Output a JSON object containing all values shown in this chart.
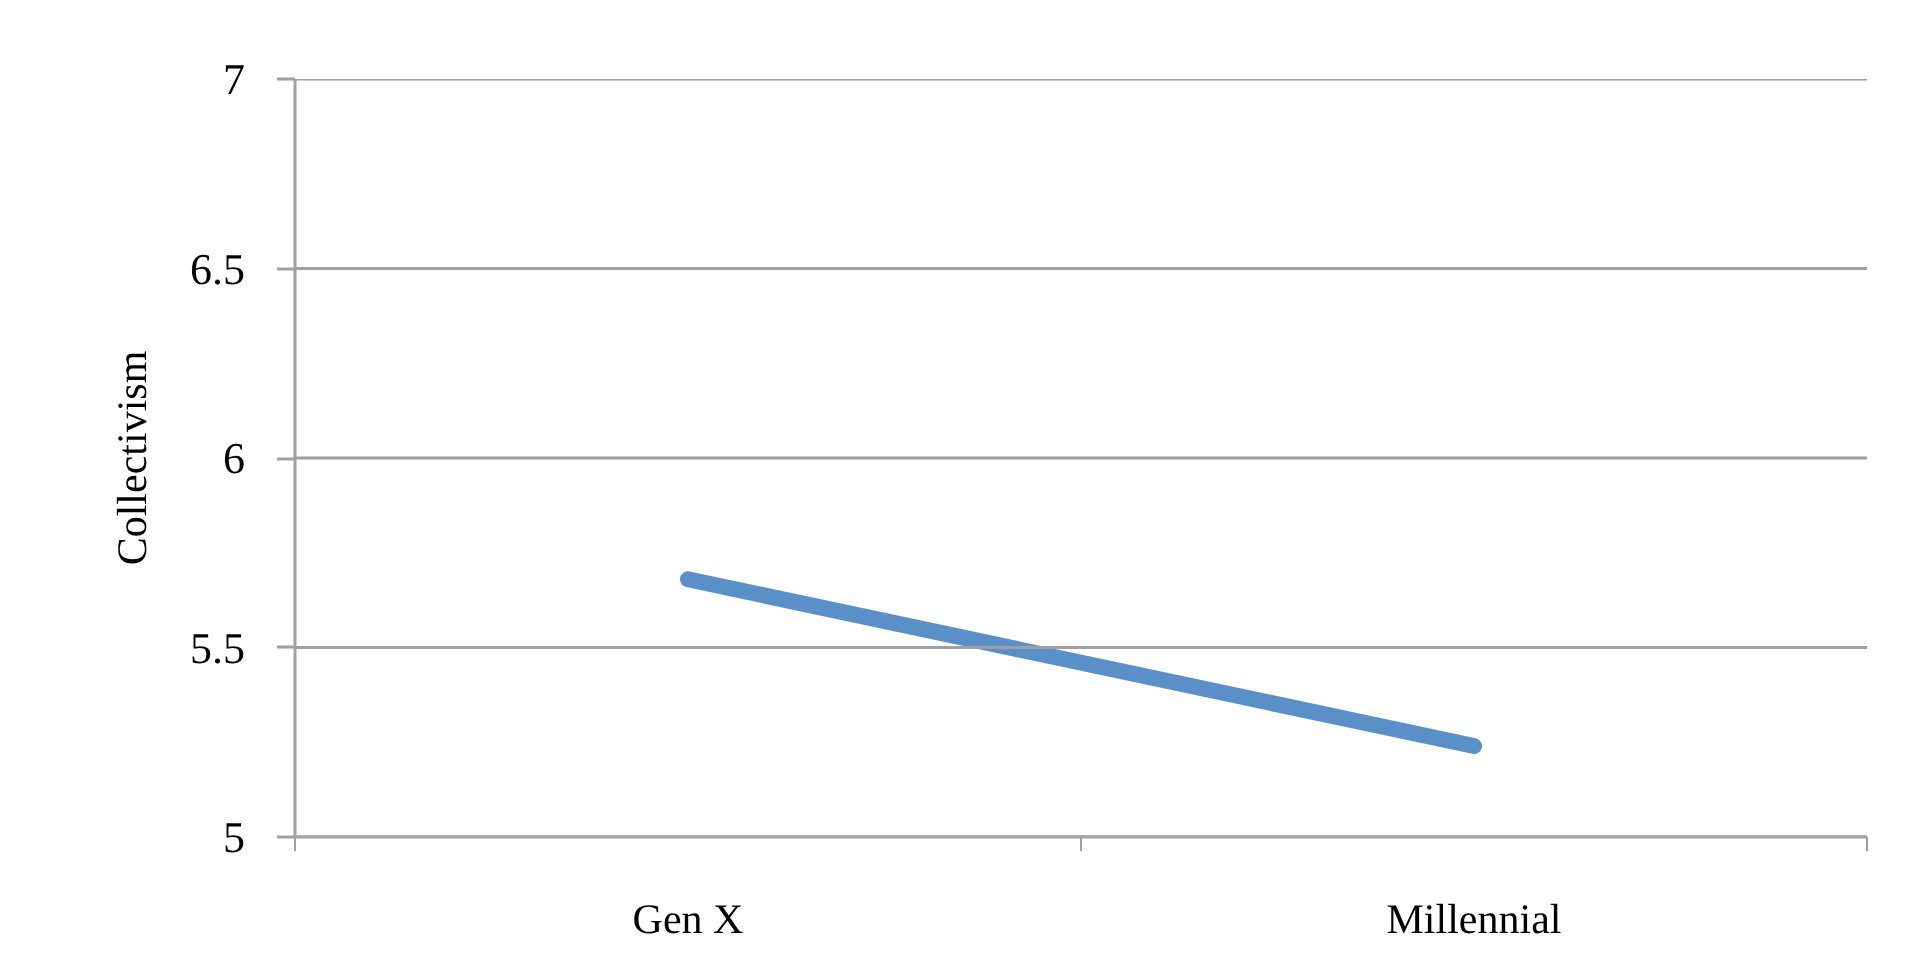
{
  "chart_data": {
    "type": "line",
    "categories": [
      "Gen X",
      "Millennial"
    ],
    "series": [
      {
        "color": "#5a8fc8",
        "values": [
          5.68,
          5.24
        ]
      }
    ],
    "ylabel": "Collectivism",
    "ylim": [
      5,
      7
    ],
    "yticks": [
      5,
      5.5,
      6,
      6.5,
      7
    ],
    "grid": "y"
  }
}
